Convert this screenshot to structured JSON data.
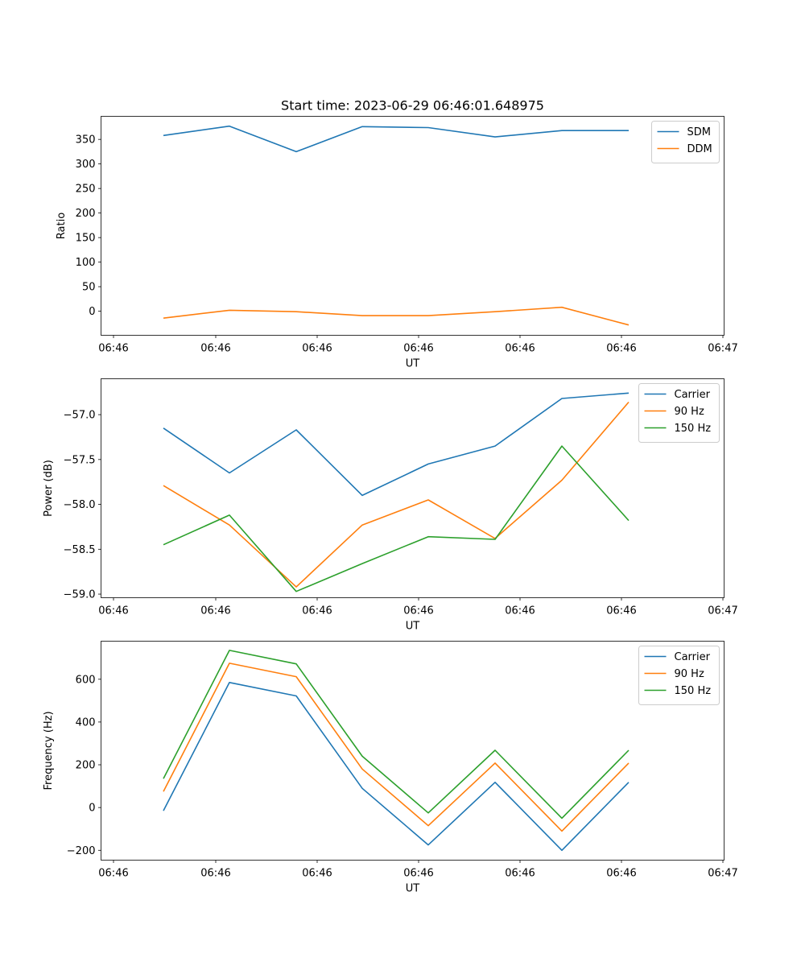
{
  "chart_data": [
    {
      "type": "line",
      "title": "Start time: 2023-06-29 06:46:01.648975",
      "xlabel": "UT",
      "ylabel": "Ratio",
      "x_tick_labels": [
        "06:46",
        "06:46",
        "06:46",
        "06:46",
        "06:46",
        "06:46",
        "06:46",
        "06:47"
      ],
      "y_ticks": [
        0,
        50,
        100,
        150,
        200,
        250,
        300,
        350
      ],
      "ylim": [
        -49,
        397
      ],
      "x_points": 8,
      "legend_position": "upper right",
      "grid": false,
      "series": [
        {
          "name": "SDM",
          "color": "#1f77b4",
          "values": [
            358,
            377,
            325,
            376,
            374,
            355,
            368,
            368
          ]
        },
        {
          "name": "DDM",
          "color": "#ff7f0e",
          "values": [
            -14,
            2,
            -1,
            -9,
            -9,
            -1,
            8,
            -28
          ]
        }
      ]
    },
    {
      "type": "line",
      "title": "",
      "xlabel": "UT",
      "ylabel": "Power (dB)",
      "x_tick_labels": [
        "06:46",
        "06:46",
        "06:46",
        "06:46",
        "06:46",
        "06:46",
        "06:46",
        "06:47"
      ],
      "y_ticks": [
        -59.0,
        -58.5,
        -58.0,
        -57.5,
        -57.0
      ],
      "y_tick_labels": [
        "−59.0",
        "−58.5",
        "−58.0",
        "−57.5",
        "−57.0"
      ],
      "ylim": [
        -59.04,
        -56.6
      ],
      "x_points": 8,
      "legend_position": "upper right",
      "grid": false,
      "series": [
        {
          "name": "Carrier",
          "color": "#1f77b4",
          "values": [
            -57.15,
            -57.65,
            -57.17,
            -57.9,
            -57.55,
            -57.35,
            -56.82,
            -56.76
          ]
        },
        {
          "name": "90 Hz",
          "color": "#ff7f0e",
          "values": [
            -57.79,
            -58.23,
            -58.92,
            -58.23,
            -57.95,
            -58.38,
            -57.73,
            -56.86
          ]
        },
        {
          "name": "150 Hz",
          "color": "#2ca02c",
          "values": [
            -58.45,
            -58.12,
            -58.97,
            -58.66,
            -58.36,
            -58.39,
            -57.35,
            -58.18
          ]
        }
      ]
    },
    {
      "type": "line",
      "title": "",
      "xlabel": "UT",
      "ylabel": "Frequency (Hz)",
      "x_tick_labels": [
        "06:46",
        "06:46",
        "06:46",
        "06:46",
        "06:46",
        "06:46",
        "06:46",
        "06:47"
      ],
      "y_ticks": [
        -200,
        0,
        200,
        400,
        600
      ],
      "y_tick_labels": [
        "−200",
        "0",
        "200",
        "400",
        "600"
      ],
      "ylim": [
        -246,
        778
      ],
      "x_points": 8,
      "legend_position": "upper right",
      "grid": false,
      "series": [
        {
          "name": "Carrier",
          "color": "#1f77b4",
          "values": [
            -15,
            585,
            522,
            90,
            -175,
            118,
            -200,
            118
          ]
        },
        {
          "name": "90 Hz",
          "color": "#ff7f0e",
          "values": [
            75,
            675,
            612,
            180,
            -85,
            208,
            -110,
            208
          ]
        },
        {
          "name": "150 Hz",
          "color": "#2ca02c",
          "values": [
            135,
            735,
            672,
            240,
            -25,
            268,
            -50,
            268
          ]
        }
      ]
    }
  ]
}
